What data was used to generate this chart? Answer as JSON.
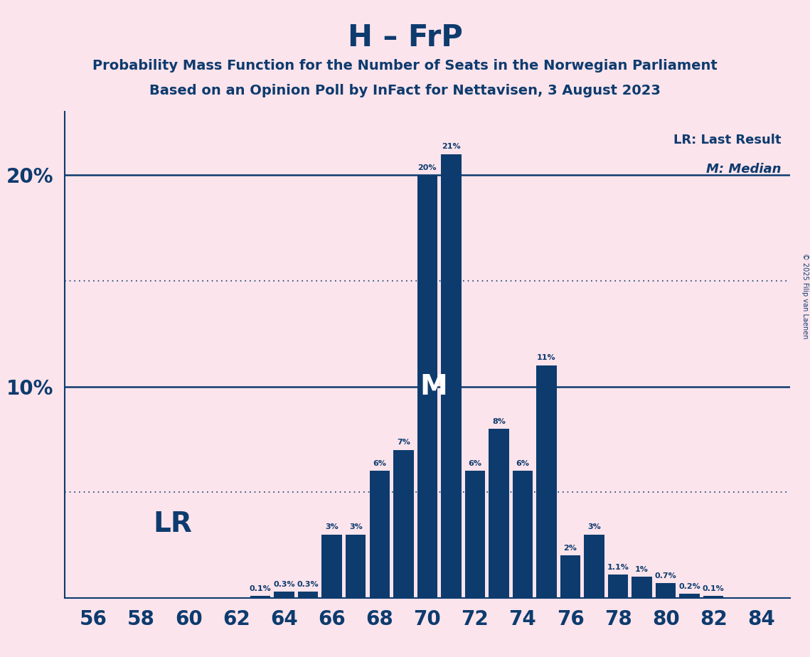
{
  "title": "H – FrP",
  "subtitle1": "Probability Mass Function for the Number of Seats in the Norwegian Parliament",
  "subtitle2": "Based on an Opinion Poll by InFact for Nettavisen, 3 August 2023",
  "copyright": "© 2025 Filip van Laenen",
  "seats": [
    56,
    57,
    58,
    59,
    60,
    61,
    62,
    63,
    64,
    65,
    66,
    67,
    68,
    69,
    70,
    71,
    72,
    73,
    74,
    75,
    76,
    77,
    78,
    79,
    80,
    81,
    82,
    83,
    84
  ],
  "probabilities": [
    0.0,
    0.0,
    0.0,
    0.0,
    0.0,
    0.0,
    0.0,
    0.1,
    0.3,
    0.3,
    3.0,
    3.0,
    6.0,
    7.0,
    20.0,
    21.0,
    6.0,
    8.0,
    6.0,
    11.0,
    2.0,
    3.0,
    1.1,
    1.0,
    0.7,
    0.2,
    0.1,
    0.0,
    0.0
  ],
  "bar_color": "#0d3b6e",
  "background_color": "#fce4ec",
  "text_color": "#0d3b6e",
  "median_seat": 71,
  "lr_seat": 64,
  "ylim": [
    0,
    23
  ],
  "hlines": [
    10.0,
    20.0
  ],
  "dotted_hlines": [
    5.0,
    15.0
  ],
  "legend_lr": "LR: Last Result",
  "legend_m": "M: Median",
  "lr_label": "LR",
  "m_label": "M",
  "bar_width": 0.85
}
